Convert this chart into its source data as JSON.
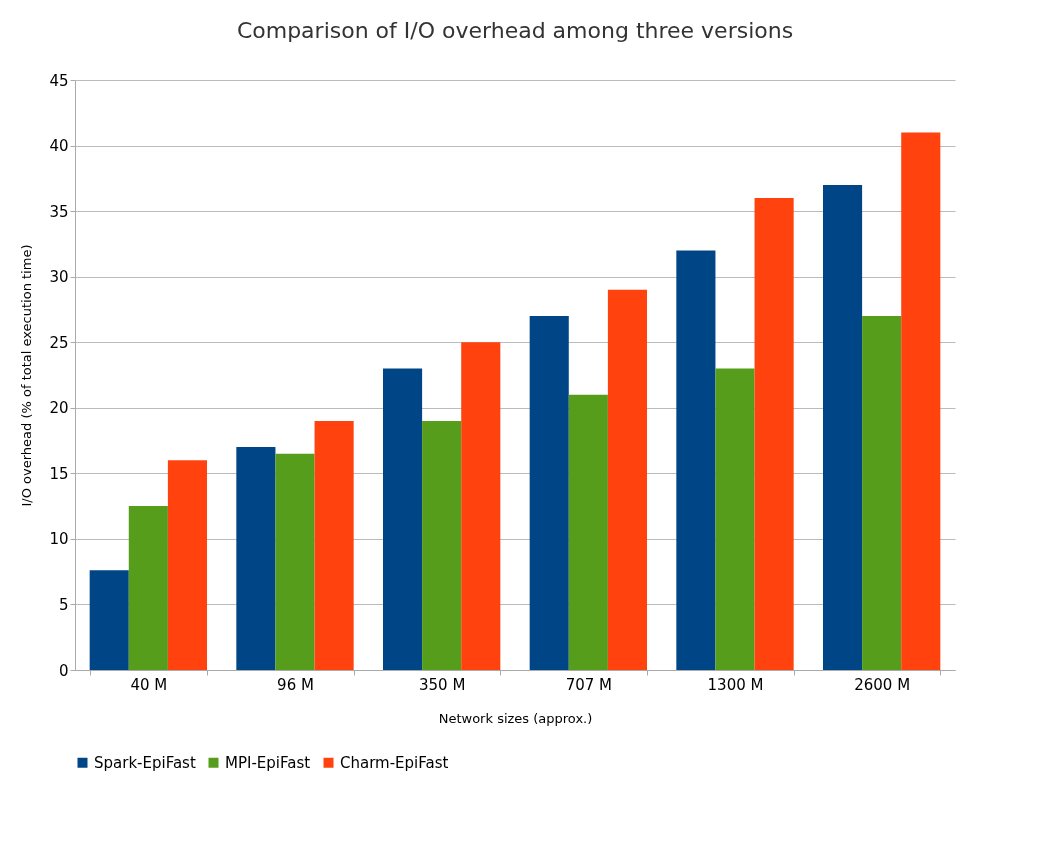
{
  "chart_data": {
    "type": "bar",
    "title": "Comparison of I/O overhead among three versions",
    "xlabel": "Network sizes (approx.)",
    "ylabel": "I/O overhead (% of total execution time)",
    "categories": [
      "40 M",
      "96 M",
      "350 M",
      "707 M",
      "1300 M",
      "2600 M"
    ],
    "series": [
      {
        "name": "Spark-EpiFast",
        "color": "#004586",
        "values": [
          7.6,
          17,
          23,
          27,
          32,
          37
        ]
      },
      {
        "name": "MPI-EpiFast",
        "color": "#579d1c",
        "values": [
          12.5,
          16.5,
          19,
          21,
          23,
          27
        ]
      },
      {
        "name": "Charm-EpiFast",
        "color": "#ff420e",
        "values": [
          16,
          19,
          25,
          29,
          36,
          41
        ]
      }
    ],
    "ylim": [
      0,
      45
    ],
    "yticks": [
      0,
      5,
      10,
      15,
      20,
      25,
      30,
      35,
      40,
      45
    ],
    "grid": "y",
    "legend": "bottom"
  }
}
